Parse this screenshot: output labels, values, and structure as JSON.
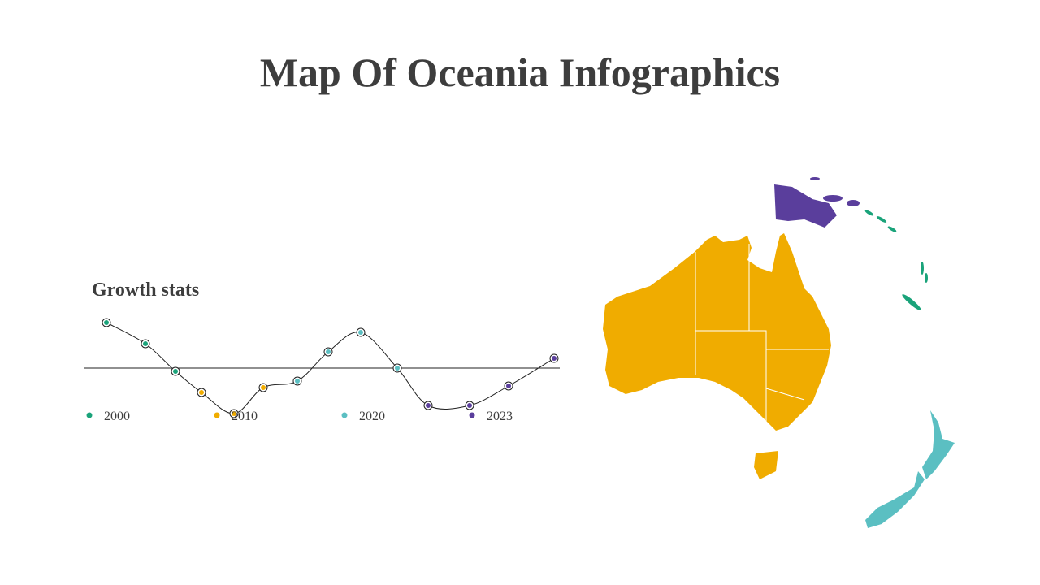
{
  "title": "Map Of Oceania Infographics",
  "chart_data": {
    "type": "line",
    "title": "Growth stats",
    "xlim": [
      0,
      586
    ],
    "ylim": [
      -40,
      40
    ],
    "series": [
      {
        "name": "2000",
        "color": "#1aa37a",
        "x": [
          28,
          76,
          113
        ],
        "values": [
          28,
          15,
          -2
        ]
      },
      {
        "name": "2010",
        "color": "#f0ac00",
        "x": [
          145,
          185,
          221
        ],
        "values": [
          -15,
          -28,
          -12
        ]
      },
      {
        "name": "2020",
        "color": "#5bbfc2",
        "x": [
          263,
          301,
          341,
          386
        ],
        "values": [
          -8,
          10,
          22,
          0
        ]
      },
      {
        "name": "2023",
        "color": "#5a3e9c",
        "x": [
          424,
          475,
          523,
          579
        ],
        "values": [
          -23,
          -23,
          -11,
          6
        ]
      }
    ]
  }
}
